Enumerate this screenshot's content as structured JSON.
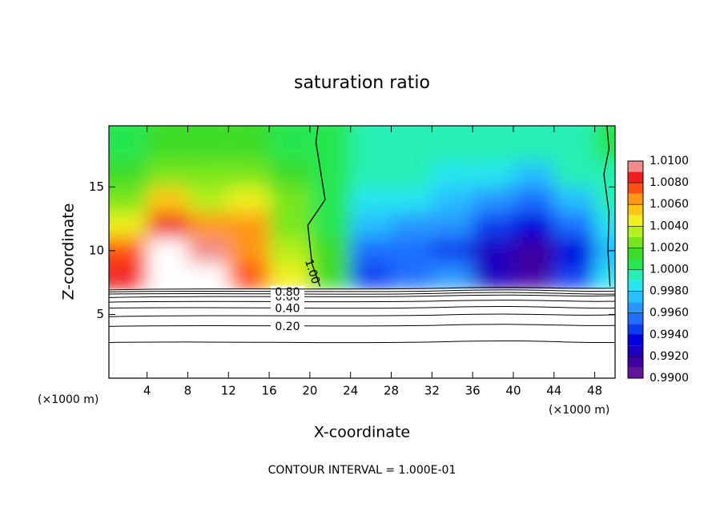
{
  "chart_data": {
    "type": "contour",
    "title": "saturation ratio",
    "x_label": "X-coordinate",
    "y_label": "Z-coordinate",
    "x_unit_left": "(×1000 m)",
    "x_unit_right": "(×1000 m)",
    "footer": "CONTOUR INTERVAL = 1.000E-01",
    "xlim": [
      0.25,
      50
    ],
    "ylim": [
      0,
      19.8
    ],
    "xticks": [
      4,
      8,
      12,
      16,
      20,
      24,
      28,
      32,
      36,
      40,
      44,
      48
    ],
    "yticks": [
      5,
      10,
      15
    ],
    "z_x": [
      2,
      6,
      10,
      14,
      18,
      22,
      26,
      30,
      34,
      38,
      42,
      46,
      50
    ],
    "z_y": [
      8,
      10,
      12,
      14,
      16,
      18
    ],
    "z": [
      [
        1.008,
        1.011,
        1.011,
        1.007,
        1.004,
        1.001,
        0.994,
        0.995,
        0.996,
        0.992,
        0.991,
        0.994,
        0.998
      ],
      [
        1.007,
        1.011,
        1.009,
        1.006,
        1.003,
        1.001,
        0.995,
        0.995,
        0.994,
        0.992,
        0.991,
        0.993,
        0.997
      ],
      [
        1.004,
        1.008,
        1.006,
        1.006,
        1.002,
        1.0,
        0.997,
        0.996,
        0.996,
        0.994,
        0.993,
        0.995,
        0.998
      ],
      [
        1.002,
        1.005,
        1.003,
        1.004,
        1.002,
        1.0,
        0.998,
        0.998,
        0.997,
        0.996,
        0.995,
        0.997,
        0.999
      ],
      [
        1.001,
        1.002,
        1.002,
        1.002,
        1.001,
        1.0,
        0.999,
        0.999,
        0.998,
        0.998,
        0.997,
        0.999,
        0.999
      ],
      [
        1.0,
        1.001,
        1.001,
        1.001,
        1.0,
        1.0,
        0.999,
        0.999,
        0.999,
        0.999,
        0.999,
        0.999,
        1.0
      ]
    ],
    "clim": [
      0.99,
      1.01
    ],
    "colors": [
      "#64149b",
      "#3c00a0",
      "#1e00c0",
      "#0000dc",
      "#0a3cf0",
      "#1e6eff",
      "#2896ff",
      "#28beff",
      "#28e6f0",
      "#28f0b4",
      "#28e650",
      "#3cdc28",
      "#78e61e",
      "#b4f01e",
      "#f0f01e",
      "#ffc814",
      "#ff9614",
      "#ff5014",
      "#f01e1e",
      "#f08c8c"
    ],
    "over_color": "#ffffff",
    "colorbar_ticks": [
      {
        "value": 0.99,
        "label": "0.9900"
      },
      {
        "value": 0.992,
        "label": "0.9920"
      },
      {
        "value": 0.994,
        "label": "0.9940"
      },
      {
        "value": 0.996,
        "label": "0.9960"
      },
      {
        "value": 0.998,
        "label": "0.9980"
      },
      {
        "value": 1.0,
        "label": "1.0000"
      },
      {
        "value": 1.002,
        "label": "1.0020"
      },
      {
        "value": 1.004,
        "label": "1.0040"
      },
      {
        "value": 1.006,
        "label": "1.0060"
      },
      {
        "value": 1.008,
        "label": "1.0080"
      },
      {
        "value": 1.01,
        "label": "1.0100"
      }
    ],
    "contours": [
      {
        "y": 2.8
      },
      {
        "y": 4.1,
        "label": "0.20"
      },
      {
        "y": 4.9
      },
      {
        "y": 5.5,
        "label": "0.40"
      },
      {
        "y": 6.0
      },
      {
        "y": 6.4,
        "label": "0.60"
      },
      {
        "y": 6.6
      },
      {
        "y": 6.8,
        "label": "0.80"
      },
      {
        "y": 7.0
      }
    ],
    "vcontours": [
      {
        "label": "1.00",
        "x": [
          21,
          20.2,
          19.8,
          21.5,
          21,
          20.6,
          20.8
        ],
        "y": [
          7.2,
          9,
          12,
          14,
          16.5,
          18.5,
          19.8
        ]
      },
      {
        "x": [
          49.5,
          49.3,
          49.4,
          48.9,
          49.4,
          49.2
        ],
        "y": [
          7.2,
          10,
          13,
          16,
          18,
          19.8
        ]
      }
    ]
  }
}
